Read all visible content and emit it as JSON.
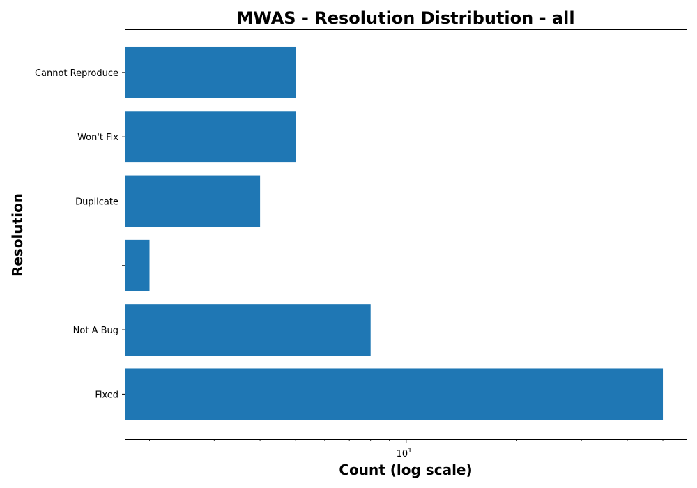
{
  "chart_data": {
    "type": "bar",
    "orientation": "horizontal",
    "title": "MWAS - Resolution Distribution - all",
    "xlabel": "Count (log scale)",
    "ylabel": "Resolution",
    "xscale": "log",
    "xlim": [
      1.72,
      58
    ],
    "x_major_ticks": [
      {
        "value": 10,
        "base": "10",
        "exp": "1"
      }
    ],
    "x_minor_ticks": [
      2,
      3,
      4,
      5,
      6,
      7,
      8,
      9,
      20,
      30,
      40,
      50
    ],
    "categories": [
      "Fixed",
      "Not A Bug",
      "",
      "Duplicate",
      "Won't Fix",
      "Cannot Reproduce"
    ],
    "values": [
      50,
      8,
      2,
      4,
      5,
      5
    ],
    "bar_color": "#1f77b4",
    "grid": false,
    "legend": "none"
  }
}
